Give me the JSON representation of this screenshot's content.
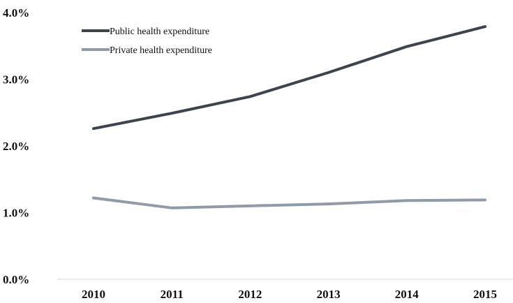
{
  "chart_data": {
    "type": "line",
    "x": [
      "2010",
      "2011",
      "2012",
      "2013",
      "2014",
      "2015"
    ],
    "series": [
      {
        "name": "Public health expenditure",
        "values": [
          2.26,
          2.49,
          2.74,
          3.1,
          3.49,
          3.79
        ],
        "color": "#3d4450"
      },
      {
        "name": "Private health expenditure",
        "values": [
          1.22,
          1.07,
          1.1,
          1.13,
          1.18,
          1.19
        ],
        "color": "#8f9aab"
      }
    ],
    "yticks": [
      "0.0%",
      "1.0%",
      "2.0%",
      "3.0%",
      "4.0%"
    ],
    "ylim": [
      0,
      4
    ],
    "title": "",
    "xlabel": "",
    "ylabel": "",
    "grid": false,
    "legend_position": "top-left"
  }
}
